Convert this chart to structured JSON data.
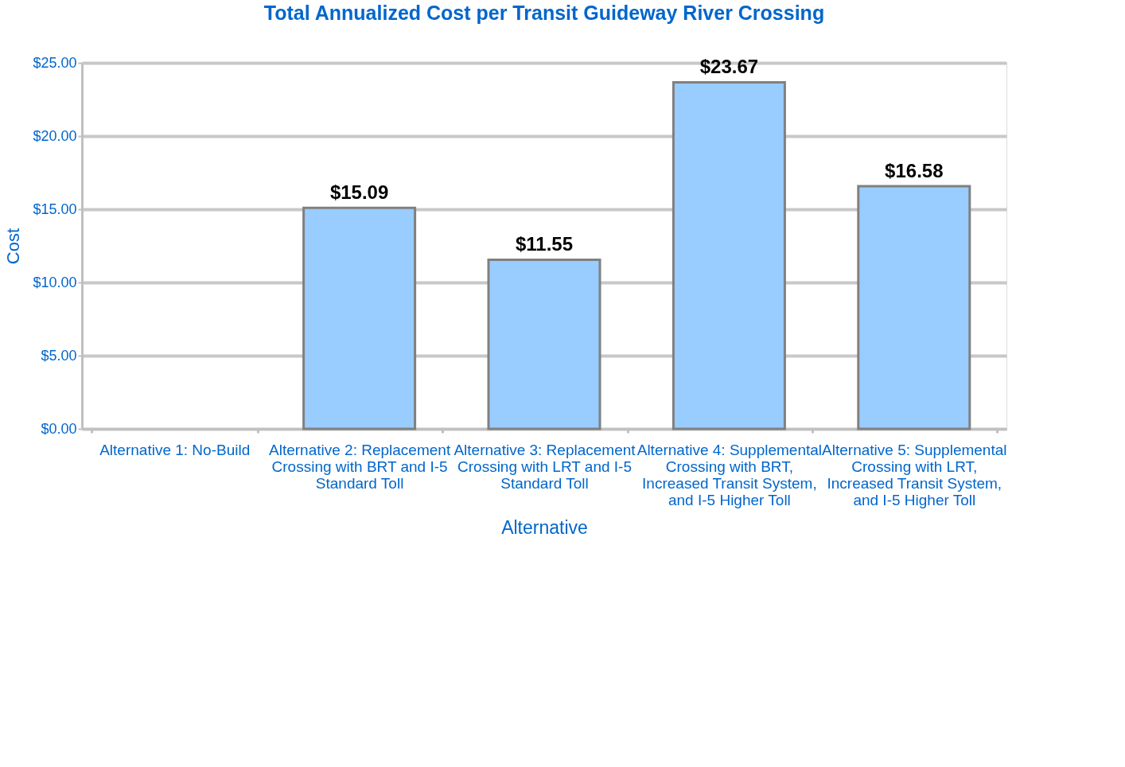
{
  "chart_data": {
    "type": "bar",
    "title": "Total Annualized Cost per Transit Guideway River Crossing",
    "xlabel": "Alternative",
    "ylabel": "Cost",
    "categories": [
      "Alternative 1: No-Build",
      "Alternative 2: Replacement Crossing with BRT and I-5 Standard Toll",
      "Alternative 3: Replacement Crossing with LRT and I-5 Standard Toll",
      "Alternative 4: Supplemental Crossing with BRT, Increased Transit System, and I-5 Higher Toll",
      "Alternative 5: Supplemental Crossing with LRT, Increased Transit System, and I-5 Higher Toll"
    ],
    "values": [
      null,
      15.09,
      11.55,
      23.67,
      16.58
    ],
    "value_labels": [
      null,
      "$15.09",
      "$11.55",
      "$23.67",
      "$16.58"
    ],
    "color": "#99ccff",
    "ylim": [
      0,
      25
    ],
    "yticks": [
      {
        "value": 0,
        "label": "$0.00"
      },
      {
        "value": 5,
        "label": "$5.00"
      },
      {
        "value": 10,
        "label": "$10.00"
      },
      {
        "value": 15,
        "label": "$15.00"
      },
      {
        "value": 20,
        "label": "$20.00"
      },
      {
        "value": 25,
        "label": "$25.00"
      }
    ],
    "grid": "y"
  }
}
